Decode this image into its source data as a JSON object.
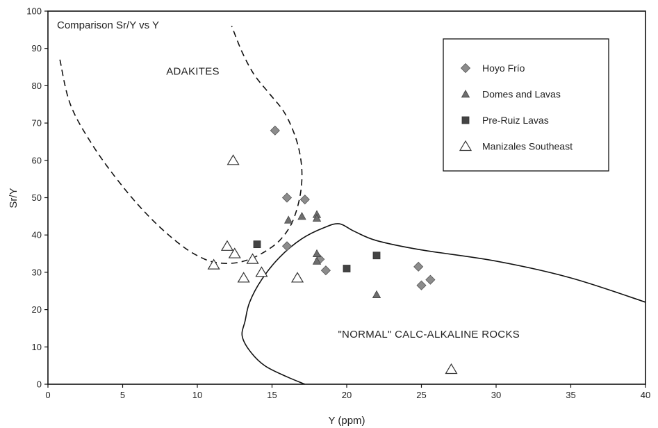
{
  "chart_data": {
    "type": "scatter",
    "title": "Comparison Sr/Y vs Y",
    "xlabel": "Y (ppm)",
    "ylabel": "Sr/Y",
    "xlim": [
      0,
      40
    ],
    "ylim": [
      0,
      100
    ],
    "x_ticks": [
      "0",
      "5",
      "10",
      "15",
      "20",
      "25",
      "30",
      "35",
      "40"
    ],
    "y_ticks": [
      "0",
      "10",
      "20",
      "30",
      "40",
      "50",
      "60",
      "70",
      "80",
      "90",
      "100"
    ],
    "grid": false,
    "legend_position": "top-right",
    "region_labels": [
      {
        "text": "ADAKITES",
        "x": 9.7,
        "y": 83
      },
      {
        "text": "\"NORMAL\" CALC-ALKALINE ROCKS",
        "x": 25.5,
        "y": 12.5
      }
    ],
    "boundaries": [
      {
        "style": "dashed",
        "name": "adakite-field-boundary",
        "points": [
          [
            0.8,
            87
          ],
          [
            1.5,
            75
          ],
          [
            3,
            64
          ],
          [
            5,
            53
          ],
          [
            7,
            44
          ],
          [
            9,
            37
          ],
          [
            10.5,
            33.5
          ],
          [
            11.5,
            32.5
          ],
          [
            12.5,
            32.5
          ],
          [
            13.5,
            33.5
          ],
          [
            14.5,
            35.5
          ],
          [
            15.5,
            38.5
          ],
          [
            16.3,
            43
          ],
          [
            16.8,
            49
          ],
          [
            17,
            55
          ],
          [
            16.9,
            61
          ],
          [
            16.5,
            67
          ],
          [
            15.8,
            73
          ],
          [
            14.8,
            78
          ],
          [
            13.8,
            83
          ],
          [
            13,
            89
          ],
          [
            12.3,
            96
          ]
        ]
      },
      {
        "style": "solid",
        "name": "calc-alkaline-field-boundary",
        "points": [
          [
            17.2,
            0
          ],
          [
            16,
            2
          ],
          [
            14.5,
            5
          ],
          [
            13.5,
            9
          ],
          [
            13,
            13
          ],
          [
            13.2,
            17
          ],
          [
            13.5,
            22
          ],
          [
            14.3,
            28
          ],
          [
            15.5,
            34
          ],
          [
            17,
            39
          ],
          [
            18.5,
            42
          ],
          [
            19.5,
            43
          ],
          [
            20.5,
            41
          ],
          [
            22,
            38.5
          ],
          [
            25,
            36
          ],
          [
            30,
            33
          ],
          [
            35,
            28.5
          ],
          [
            40,
            22
          ]
        ]
      }
    ],
    "series": [
      {
        "name": "Hoyo Frío",
        "marker": "diamond-filled",
        "color": "#8c8c8c",
        "points": [
          [
            15.2,
            68
          ],
          [
            16,
            50
          ],
          [
            17.2,
            49.5
          ],
          [
            16,
            37
          ],
          [
            18.2,
            33.5
          ],
          [
            18.6,
            30.5
          ],
          [
            24.8,
            31.5
          ],
          [
            25,
            26.5
          ],
          [
            25.6,
            28
          ]
        ]
      },
      {
        "name": "Domes and Lavas",
        "marker": "triangle-filled",
        "color": "#6e6e6e",
        "points": [
          [
            16.1,
            44
          ],
          [
            17,
            45
          ],
          [
            18,
            45.5
          ],
          [
            18,
            44.5
          ],
          [
            18,
            35
          ],
          [
            18,
            33
          ],
          [
            22,
            24
          ]
        ]
      },
      {
        "name": "Pre-Ruiz Lavas",
        "marker": "square-filled",
        "color": "#444444",
        "points": [
          [
            14,
            37.5
          ],
          [
            20,
            31
          ],
          [
            22,
            34.5
          ]
        ]
      },
      {
        "name": "Manizales Southeast",
        "marker": "triangle-open",
        "color": "#333333",
        "points": [
          [
            12.4,
            60
          ],
          [
            12,
            37
          ],
          [
            12.5,
            35
          ],
          [
            11.1,
            32
          ],
          [
            13.1,
            28.5
          ],
          [
            13.7,
            33.5
          ],
          [
            14.3,
            30
          ],
          [
            16.7,
            28.5
          ],
          [
            27,
            4
          ]
        ]
      }
    ]
  }
}
